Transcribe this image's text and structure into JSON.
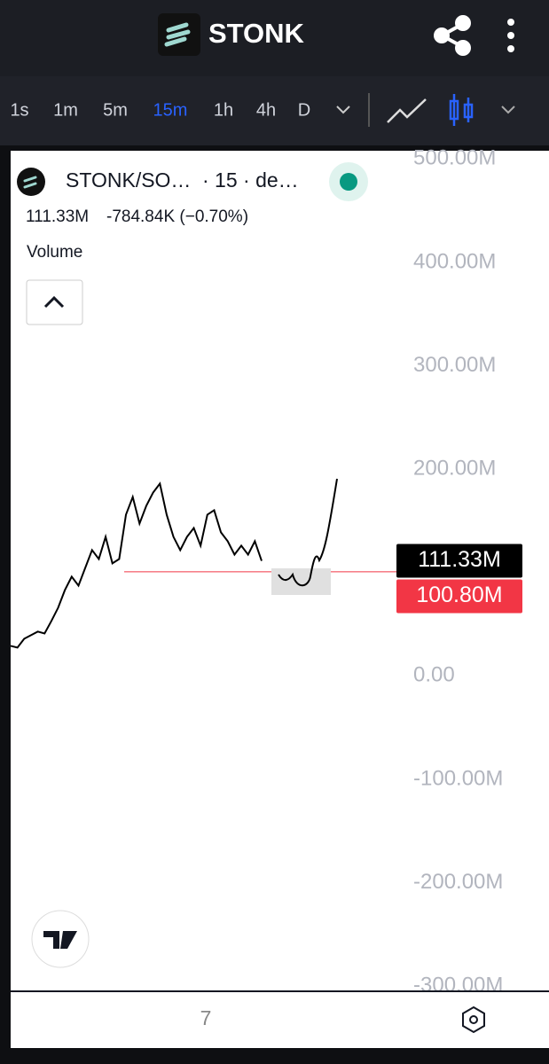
{
  "header": {
    "title": "STONK"
  },
  "toolbar": {
    "intervals": [
      "1s",
      "1m",
      "5m",
      "15m",
      "1h",
      "4h",
      "D"
    ],
    "active": "15m"
  },
  "legend": {
    "symbol": "STONK/SO…",
    "interval": "· 15 · de…",
    "last": "111.33M",
    "change": "-784.84K (−0.70%)",
    "study": "Volume"
  },
  "chart_data": {
    "type": "line",
    "color": "#000000",
    "categories": [
      null,
      null,
      null,
      null,
      null,
      null,
      null,
      null,
      null,
      null,
      null,
      null,
      null,
      null,
      null,
      null,
      null,
      null,
      null,
      null,
      null,
      null,
      null,
      null,
      null,
      null,
      null,
      null,
      null,
      null,
      null,
      null,
      null,
      null,
      null,
      null,
      null,
      null
    ],
    "values": [
      29.1,
      27.4,
      36.0,
      39.4,
      42.9,
      41.1,
      53.1,
      66.0,
      83.1,
      96.0,
      87.4,
      104.6,
      121.7,
      113.1,
      134.6,
      108.9,
      113.1,
      156.0,
      173.1,
      147.4,
      164.6,
      177.4,
      186.0,
      156.0,
      134.6,
      121.7,
      134.6,
      143.1,
      126.0,
      156.0,
      160.3,
      138.9,
      130.3,
      117.4,
      126.0,
      117.4,
      130.3,
      111.33
    ],
    "ylim": [
      -305,
      508
    ],
    "yticks": [
      {
        "value": 500,
        "label": "500.00M"
      },
      {
        "value": 400,
        "label": "400.00M"
      },
      {
        "value": 300,
        "label": "300.00M"
      },
      {
        "value": 200,
        "label": "200.00M"
      },
      {
        "value": 0,
        "label": "0.00"
      },
      {
        "value": -100,
        "label": "-100.00M"
      },
      {
        "value": -200,
        "label": "-200.00M"
      },
      {
        "value": -300,
        "label": "-300.00M"
      }
    ],
    "last_price": {
      "value": 111.33,
      "label": "111.33M"
    },
    "ref_line": {
      "value": 100.8,
      "label": "100.80M",
      "color": "#f23645"
    },
    "x_label": "7"
  }
}
